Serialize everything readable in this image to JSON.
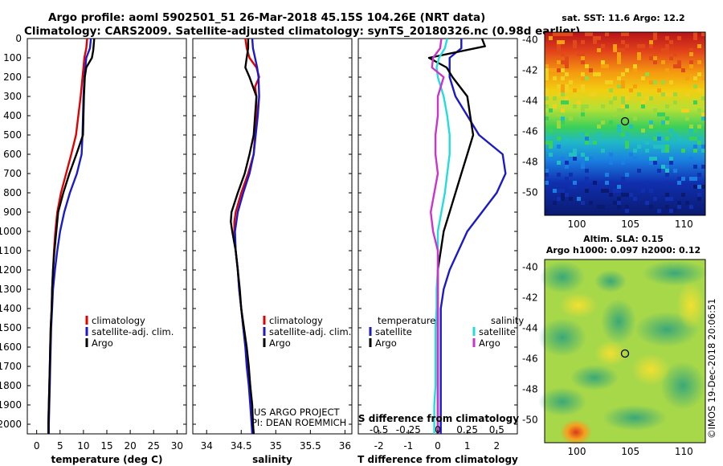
{
  "header": {
    "line1": "Argo profile: aoml 5902501_51 26-Mar-2018 45.15S 104.26E (NRT data)",
    "line2": "Climatology: CARS2009. Satellite-adjusted climatology: synTS_20180326.nc (0.98d earlier)"
  },
  "colors": {
    "climatology": "#e00000",
    "satellite": "#1a1acc",
    "argo": "#000000",
    "salinity_sat": "#22dddd",
    "salinity_argo": "#cc33cc"
  },
  "depth_ticks": [
    "0",
    "100",
    "200",
    "300",
    "400",
    "500",
    "600",
    "700",
    "800",
    "900",
    "1000",
    "1100",
    "1200",
    "1300",
    "1400",
    "1500",
    "1600",
    "1700",
    "1800",
    "1900",
    "2000"
  ],
  "panel_temp": {
    "xlabel": "temperature (deg C)",
    "xticks": [
      "0",
      "5",
      "10",
      "15",
      "20",
      "25",
      "30"
    ],
    "legend": [
      "climatology",
      "satellite-adj. clim.",
      "Argo"
    ]
  },
  "panel_sal": {
    "xlabel": "salinity",
    "xticks": [
      "34",
      "34.5",
      "35",
      "35.5",
      "36"
    ],
    "legend": [
      "climatology",
      "satellite-adj. clim.",
      "Argo"
    ],
    "credit1": "US ARGO PROJECT",
    "credit2": "PI: DEAN ROEMMICH"
  },
  "panel_diff": {
    "xlabel": "T difference from climatology",
    "xticks": [
      "-2",
      "-1",
      "0",
      "1",
      "2"
    ],
    "top_label": "S difference from climatology",
    "top_ticks": [
      "-0.5",
      "-0.25",
      "0",
      "0.25",
      "0.5"
    ],
    "legend_t_title": "temperature",
    "legend_s_title": "salinity",
    "legend_t": [
      "satellite",
      "Argo"
    ],
    "legend_s": [
      "satellite",
      "Argo"
    ]
  },
  "map_sst": {
    "title": "sat. SST: 11.6 Argo: 12.2",
    "yticks": [
      "-40",
      "-42",
      "-44",
      "-46",
      "-48",
      "-50"
    ],
    "xticks": [
      "100",
      "105",
      "110"
    ]
  },
  "map_sla": {
    "title1": "Altim. SLA: 0.15",
    "title2": "Argo h1000: 0.097 h2000: 0.12",
    "yticks": [
      "-40",
      "-42",
      "-44",
      "-46",
      "-48",
      "-50"
    ],
    "xticks": [
      "100",
      "105",
      "110"
    ]
  },
  "footer": {
    "imos": "©IMOS 19-Dec-2018 20:06:51"
  },
  "chart_data": [
    {
      "type": "line",
      "xlabel": "temperature (deg C)",
      "ylim": [
        2050,
        0
      ],
      "xlim": [
        -2,
        32
      ],
      "series": [
        {
          "name": "climatology",
          "depth": [
            0,
            50,
            100,
            150,
            200,
            300,
            400,
            500,
            600,
            700,
            800,
            900,
            1000,
            1100,
            1200,
            1300,
            1400,
            1500,
            1600,
            1700,
            1800,
            1900,
            2000,
            2050
          ],
          "values": [
            10.8,
            10.6,
            10.2,
            10,
            9.8,
            9.4,
            8.9,
            8.4,
            7.4,
            6.3,
            5.2,
            4.4,
            4,
            3.7,
            3.5,
            3.3,
            3.2,
            3.0,
            2.9,
            2.8,
            2.7,
            2.6,
            2.5,
            2.5
          ]
        },
        {
          "name": "satellite-adj. clim.",
          "depth": [
            0,
            50,
            100,
            150,
            200,
            300,
            400,
            500,
            600,
            700,
            800,
            900,
            1000,
            1100,
            1200,
            1300,
            1400,
            1500,
            1600,
            1700,
            1800,
            1900,
            2000,
            2050
          ],
          "values": [
            11.6,
            11.4,
            10.6,
            10.4,
            10.2,
            10.0,
            9.9,
            9.8,
            9.6,
            8.6,
            7.1,
            5.9,
            5.0,
            4.4,
            3.9,
            3.5,
            3.3,
            3.1,
            3.0,
            2.9,
            2.8,
            2.7,
            2.6,
            2.6
          ]
        },
        {
          "name": "Argo",
          "depth": [
            0,
            30,
            60,
            100,
            150,
            200,
            300,
            400,
            500,
            600,
            700,
            800,
            900,
            1000,
            1100,
            1200,
            1300,
            1400,
            1500,
            1600,
            1700,
            1800,
            1900,
            2000,
            2050
          ],
          "values": [
            12.3,
            12.2,
            12.1,
            11.8,
            10.6,
            10.3,
            10.1,
            10.0,
            9.9,
            8.5,
            7.0,
            5.7,
            4.6,
            4.2,
            3.8,
            3.5,
            3.3,
            3.2,
            3.0,
            2.9,
            2.8,
            2.7,
            2.6,
            2.5,
            2.5
          ]
        }
      ]
    },
    {
      "type": "line",
      "xlabel": "salinity",
      "ylim": [
        2050,
        0
      ],
      "xlim": [
        33.8,
        36.1
      ],
      "series": [
        {
          "name": "climatology",
          "depth": [
            0,
            50,
            100,
            150,
            200,
            250,
            300,
            400,
            500,
            600,
            700,
            800,
            900,
            950,
            1000,
            1100,
            1200,
            1300,
            1400,
            1500,
            1600,
            1700,
            1800,
            1900,
            2000,
            2050
          ],
          "values": [
            34.56,
            34.58,
            34.62,
            34.72,
            34.76,
            34.7,
            34.72,
            34.72,
            34.7,
            34.68,
            34.6,
            34.5,
            34.42,
            34.4,
            34.4,
            34.42,
            34.45,
            34.47,
            34.5,
            34.53,
            34.57,
            34.6,
            34.63,
            34.65,
            34.67,
            34.68
          ]
        },
        {
          "name": "satellite-adj. clim.",
          "depth": [
            0,
            50,
            100,
            150,
            200,
            300,
            400,
            500,
            600,
            700,
            800,
            900,
            1000,
            1100,
            1200,
            1300,
            1400,
            1500,
            1600,
            1700,
            1800,
            1900,
            2000,
            2050
          ],
          "values": [
            34.66,
            34.67,
            34.7,
            34.73,
            34.75,
            34.76,
            34.74,
            34.71,
            34.68,
            34.62,
            34.53,
            34.45,
            34.41,
            34.42,
            34.45,
            34.47,
            34.5,
            34.53,
            34.56,
            34.58,
            34.61,
            34.63,
            34.65,
            34.66
          ]
        },
        {
          "name": "Argo",
          "depth": [
            0,
            50,
            100,
            150,
            200,
            300,
            400,
            500,
            600,
            700,
            800,
            900,
            950,
            1000,
            1100,
            1200,
            1300,
            1400,
            1500,
            1600,
            1700,
            1800,
            1900,
            2000,
            2050
          ],
          "values": [
            34.6,
            34.6,
            34.58,
            34.56,
            34.62,
            34.72,
            34.7,
            34.68,
            34.62,
            34.55,
            34.45,
            34.36,
            34.35,
            34.37,
            34.42,
            34.45,
            34.48,
            34.5,
            34.54,
            34.58,
            34.61,
            34.63,
            34.66,
            34.67,
            34.68
          ]
        }
      ]
    },
    {
      "type": "line",
      "xlabel": "T difference from climatology",
      "x2label": "S difference from climatology",
      "ylim": [
        2050,
        0
      ],
      "xlim": [
        -2.7,
        2.7
      ],
      "x2lim": [
        -0.675,
        0.675
      ],
      "series": [
        {
          "name": "temperature satellite",
          "axis": "T",
          "depth": [
            0,
            50,
            100,
            150,
            200,
            300,
            400,
            500,
            600,
            700,
            800,
            900,
            1000,
            1100,
            1200,
            1300,
            1400,
            1500,
            1600,
            1700,
            1800,
            1900,
            2000,
            2050
          ],
          "values": [
            0.8,
            0.8,
            0.4,
            0.4,
            0.4,
            0.6,
            1.0,
            1.4,
            2.2,
            2.3,
            2.0,
            1.5,
            1.0,
            0.7,
            0.4,
            0.2,
            0.1,
            0.1,
            0.1,
            0.1,
            0.1,
            0.1,
            0.1,
            0.1
          ]
        },
        {
          "name": "temperature Argo",
          "axis": "T",
          "depth": [
            0,
            40,
            100,
            150,
            200,
            300,
            400,
            500,
            600,
            700,
            800,
            900,
            1000,
            1100,
            1200,
            1300,
            1400,
            1500,
            1600,
            1700,
            1800,
            1900,
            2000,
            2050
          ],
          "values": [
            1.5,
            1.6,
            -0.3,
            0.3,
            0.5,
            1.0,
            1.1,
            1.2,
            1.0,
            0.8,
            0.6,
            0.4,
            0.2,
            0.1,
            0.0,
            0.0,
            0.0,
            0.0,
            0.0,
            0.0,
            0.0,
            0.0,
            0.0,
            0.0
          ]
        },
        {
          "name": "salinity satellite",
          "axis": "S",
          "depth": [
            0,
            50,
            100,
            150,
            200,
            300,
            400,
            500,
            600,
            700,
            800,
            900,
            1000,
            1100,
            1200,
            1300,
            1400,
            1500,
            1600,
            1700,
            1800,
            1900,
            2000,
            2050
          ],
          "values": [
            0.08,
            0.06,
            0.01,
            -0.01,
            0.0,
            0.05,
            0.08,
            0.1,
            0.1,
            0.08,
            0.06,
            0.03,
            0.0,
            0.0,
            0.0,
            -0.01,
            -0.01,
            -0.02,
            -0.02,
            -0.02,
            -0.02,
            -0.03,
            -0.03,
            -0.03
          ]
        },
        {
          "name": "salinity Argo",
          "axis": "S",
          "depth": [
            0,
            50,
            100,
            150,
            200,
            300,
            400,
            500,
            600,
            700,
            800,
            900,
            1000,
            1100,
            1200,
            1300,
            1400,
            1500,
            1600,
            1700,
            1800,
            1900,
            2000,
            2050
          ],
          "values": [
            0.03,
            0.02,
            -0.04,
            -0.05,
            0.05,
            0.0,
            0.0,
            -0.02,
            -0.02,
            0.0,
            -0.03,
            -0.06,
            -0.04,
            0.0,
            0.0,
            0.0,
            0.0,
            0.0,
            0.0,
            0.0,
            0.0,
            0.0,
            0.0,
            0.0
          ]
        }
      ]
    },
    {
      "type": "heatmap",
      "title": "sat. SST: 11.6 Argo: 12.2",
      "xlim": [
        97,
        112
      ],
      "ylim": [
        -51.5,
        -39.5
      ],
      "marker": {
        "lon": 104.26,
        "lat": -45.15
      }
    },
    {
      "type": "heatmap",
      "title": "Altim. SLA: 0.15 Argo h1000: 0.097 h2000: 0.12",
      "xlim": [
        97,
        112
      ],
      "ylim": [
        -51.5,
        -39.5
      ],
      "marker": {
        "lon": 104.26,
        "lat": -45.15
      }
    }
  ]
}
